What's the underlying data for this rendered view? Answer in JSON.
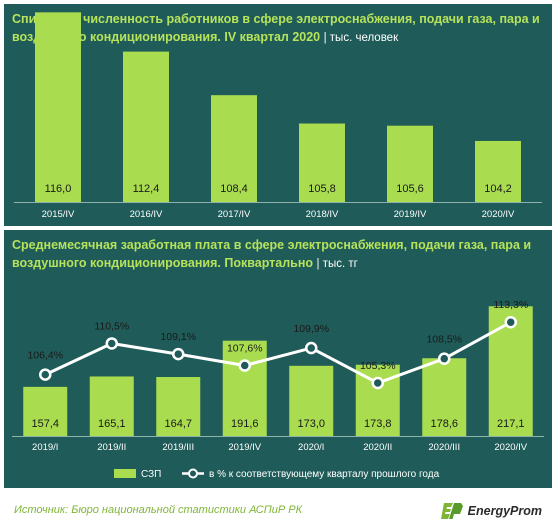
{
  "chart_data": [
    {
      "type": "bar",
      "title": "Списочная численность работников в сфере электроснабжения, подачи газа, пара и воздушного  кондиционирования. IV квартал 2020",
      "unit": "| тыс. человек",
      "categories": [
        "2015/IV",
        "2016/IV",
        "2017/IV",
        "2018/IV",
        "2019/IV",
        "2020/IV"
      ],
      "value_labels": [
        "116,0",
        "112,4",
        "108,4",
        "105,8",
        "105,6",
        "104,2"
      ],
      "values": [
        116.0,
        112.4,
        108.4,
        105.8,
        105.6,
        104.2
      ]
    },
    {
      "type": "bar+line",
      "title": "Среднемесячная заработная плата в сфере электроснабжения, подачи газа, пара и воздушного кондиционирования. Поквартально",
      "unit": "| тыс. тг",
      "categories": [
        "2019/I",
        "2019/II",
        "2019/III",
        "2019/IV",
        "2020/I",
        "2020/II",
        "2020/III",
        "2020/IV"
      ],
      "bar_series": {
        "name": "СЗП",
        "value_labels": [
          "157,4",
          "165,1",
          "164,7",
          "191,6",
          "173,0",
          "173,8",
          "178,6",
          "217,1"
        ],
        "values": [
          157.4,
          165.1,
          164.7,
          191.6,
          173.0,
          173.8,
          178.6,
          217.1
        ]
      },
      "line_series": {
        "name": "в % к соответствующему кварталу прошлого года",
        "value_labels": [
          "106,4%",
          "110,5%",
          "109,1%",
          "107,6%",
          "109,9%",
          "105,3%",
          "108,5%",
          "113,3%"
        ],
        "values": [
          106.4,
          110.5,
          109.1,
          107.6,
          109.9,
          105.3,
          108.5,
          113.3
        ]
      },
      "legend_position": "bottom"
    }
  ],
  "colors": {
    "panel_bg": "#1f5b58",
    "bar": "#a9dc4f",
    "title": "#b6e35b",
    "line": "#ffffff"
  },
  "footer": {
    "source": "Источник: Бюро национальной  статистики АСПиР РК",
    "logo_text": "EnergyProm"
  }
}
